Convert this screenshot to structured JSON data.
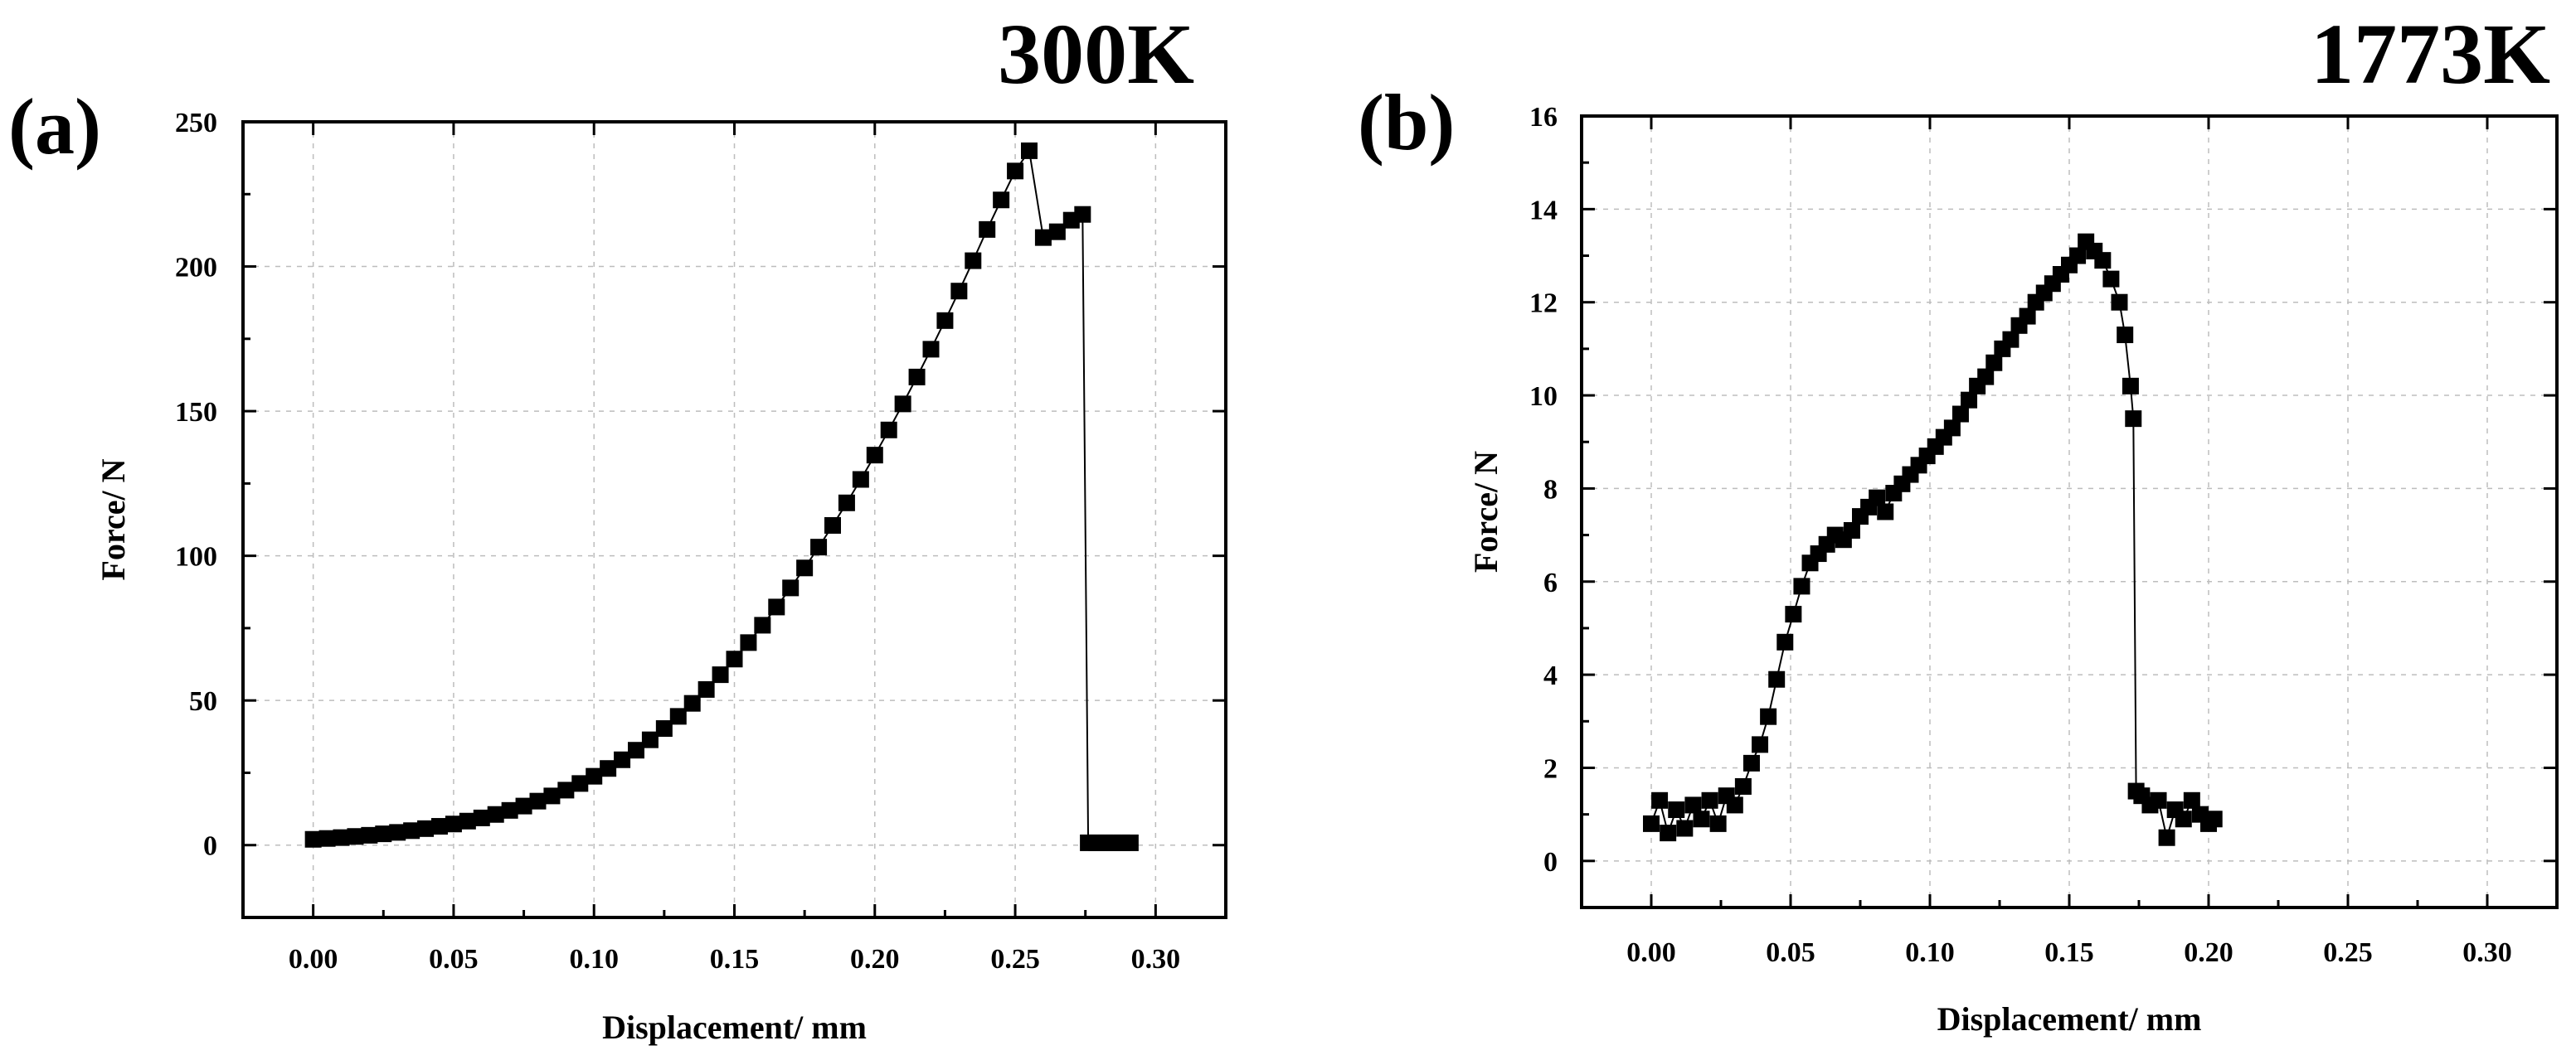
{
  "chart_data": [
    {
      "type": "scatter",
      "panel_label": "(a)",
      "title": "300K",
      "xlabel": "Displacement/ mm",
      "ylabel": "Force/ N",
      "xlim": [
        -0.025,
        0.325
      ],
      "ylim": [
        -25,
        250
      ],
      "xticks": [
        "0.00",
        "0.05",
        "0.10",
        "0.15",
        "0.20",
        "0.25",
        "0.30"
      ],
      "yticks": [
        "0",
        "50",
        "100",
        "150",
        "200",
        "250"
      ],
      "grid": true,
      "series": [
        {
          "name": "300K",
          "x": [
            0.0,
            0.005,
            0.01,
            0.015,
            0.02,
            0.025,
            0.03,
            0.035,
            0.04,
            0.045,
            0.05,
            0.055,
            0.06,
            0.065,
            0.07,
            0.075,
            0.08,
            0.085,
            0.09,
            0.095,
            0.1,
            0.105,
            0.11,
            0.115,
            0.12,
            0.125,
            0.13,
            0.135,
            0.14,
            0.145,
            0.15,
            0.155,
            0.16,
            0.165,
            0.17,
            0.175,
            0.18,
            0.185,
            0.19,
            0.195,
            0.2,
            0.205,
            0.21,
            0.215,
            0.22,
            0.225,
            0.23,
            0.235,
            0.24,
            0.245,
            0.25,
            0.255,
            0.26,
            0.265,
            0.27,
            0.274,
            0.276,
            0.279,
            0.282,
            0.285,
            0.288,
            0.291
          ],
          "y": [
            2.0,
            2.3,
            2.6,
            3.0,
            3.4,
            3.9,
            4.4,
            5.0,
            5.7,
            6.5,
            7.3,
            8.3,
            9.4,
            10.6,
            12.0,
            13.5,
            15.2,
            17.0,
            19.0,
            21.3,
            23.8,
            26.5,
            29.5,
            32.8,
            36.4,
            40.3,
            44.5,
            49.0,
            53.8,
            58.9,
            64.3,
            70.0,
            76.0,
            82.3,
            88.9,
            95.8,
            103.0,
            110.5,
            118.3,
            126.4,
            134.8,
            143.5,
            152.5,
            161.8,
            171.4,
            181.3,
            191.5,
            202.0,
            212.8,
            223.0,
            233.0,
            240.0,
            210.0,
            212.0,
            216.0,
            218.0,
            0.8,
            0.8,
            0.8,
            0.8,
            0.8,
            0.8
          ]
        }
      ]
    },
    {
      "type": "scatter",
      "panel_label": "(b)",
      "title": "1773K",
      "xlabel": "Displacement/ mm",
      "ylabel": "Force/ N",
      "xlim": [
        -0.025,
        0.325
      ],
      "ylim": [
        -1,
        16
      ],
      "xticks": [
        "0.00",
        "0.05",
        "0.10",
        "0.15",
        "0.20",
        "0.25",
        "0.30"
      ],
      "yticks": [
        "0",
        "2",
        "4",
        "6",
        "8",
        "10",
        "12",
        "14",
        "16"
      ],
      "grid": true,
      "series": [
        {
          "name": "1773K",
          "x": [
            0.0,
            0.003,
            0.006,
            0.009,
            0.012,
            0.015,
            0.018,
            0.021,
            0.024,
            0.027,
            0.03,
            0.033,
            0.036,
            0.039,
            0.042,
            0.045,
            0.048,
            0.051,
            0.054,
            0.057,
            0.06,
            0.063,
            0.066,
            0.069,
            0.072,
            0.075,
            0.078,
            0.081,
            0.084,
            0.087,
            0.09,
            0.093,
            0.096,
            0.099,
            0.102,
            0.105,
            0.108,
            0.111,
            0.114,
            0.117,
            0.12,
            0.123,
            0.126,
            0.129,
            0.132,
            0.135,
            0.138,
            0.141,
            0.144,
            0.147,
            0.15,
            0.153,
            0.156,
            0.159,
            0.162,
            0.165,
            0.168,
            0.17,
            0.172,
            0.173,
            0.174,
            0.176,
            0.179,
            0.182,
            0.185,
            0.188,
            0.191,
            0.194,
            0.197,
            0.2,
            0.202
          ],
          "y": [
            0.8,
            1.3,
            0.6,
            1.1,
            0.7,
            1.2,
            0.9,
            1.3,
            0.8,
            1.4,
            1.2,
            1.6,
            2.1,
            2.5,
            3.1,
            3.9,
            4.7,
            5.3,
            5.9,
            6.4,
            6.6,
            6.8,
            7.0,
            6.9,
            7.1,
            7.4,
            7.6,
            7.8,
            7.5,
            7.9,
            8.1,
            8.3,
            8.5,
            8.7,
            8.9,
            9.1,
            9.3,
            9.6,
            9.9,
            10.2,
            10.4,
            10.7,
            11.0,
            11.2,
            11.5,
            11.7,
            12.0,
            12.2,
            12.4,
            12.6,
            12.8,
            13.0,
            13.3,
            13.1,
            12.9,
            12.5,
            12.0,
            11.3,
            10.2,
            9.5,
            1.5,
            1.4,
            1.2,
            1.3,
            0.5,
            1.1,
            0.9,
            1.3,
            1.0,
            0.8,
            0.9
          ]
        }
      ]
    }
  ]
}
